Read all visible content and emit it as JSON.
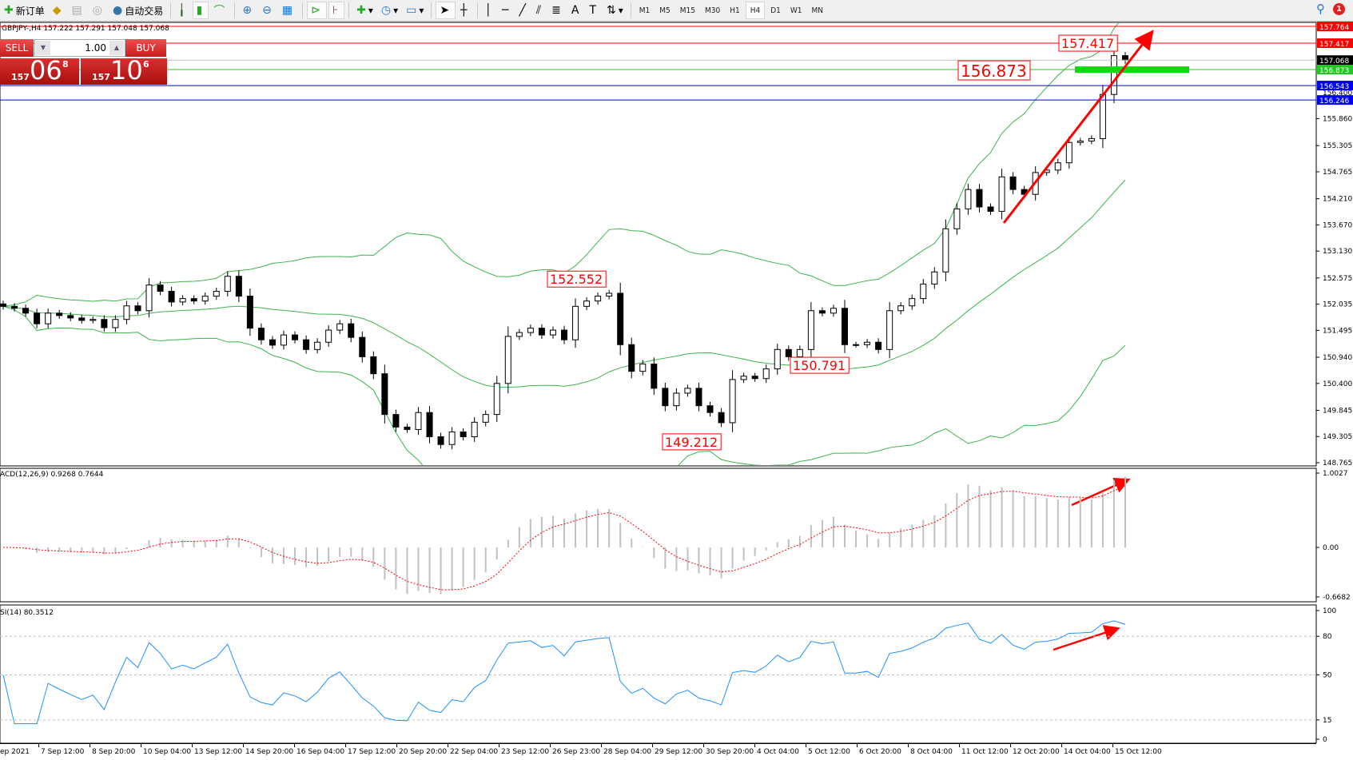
{
  "toolbar": {
    "new_order": "新订单",
    "auto_trading": "自动交易",
    "timeframes": [
      "M1",
      "M5",
      "M15",
      "M30",
      "H1",
      "H4",
      "D1",
      "W1",
      "MN"
    ],
    "active_timeframe": "H4",
    "notification_count": "1"
  },
  "chart_info": "GBPJPY-,H4  157.222 157.291 157.048 157.068",
  "one_click": {
    "sell_label": "SELL",
    "buy_label": "BUY",
    "lot": "1.00",
    "sell_price_prefix": "157",
    "sell_price_big": "06",
    "sell_price_sup": "8",
    "buy_price_prefix": "157",
    "buy_price_big": "10",
    "buy_price_sup": "6"
  },
  "colors": {
    "bollinger": "#3cb44b",
    "resistance": "#ff0000",
    "target": "#22c822",
    "support": "#0000ff",
    "rsi": "#1e90ff",
    "macd_hist": "#c0c0c0",
    "macd_signal": "#ff0000",
    "annotation": "#ff0000"
  },
  "chart_data": {
    "type": "candlestick",
    "symbol": "GBPJPY-",
    "timeframe": "H4",
    "closes": [
      151.99,
      151.95,
      151.85,
      151.63,
      151.85,
      151.8,
      151.75,
      151.7,
      151.72,
      151.55,
      151.72,
      152.0,
      151.9,
      152.43,
      152.3,
      152.08,
      152.15,
      152.1,
      152.2,
      152.3,
      152.61,
      152.2,
      151.54,
      151.3,
      151.19,
      151.4,
      151.3,
      151.1,
      151.25,
      151.5,
      151.63,
      151.35,
      150.95,
      150.6,
      149.76,
      149.5,
      149.45,
      149.8,
      149.3,
      149.14,
      149.4,
      149.3,
      149.6,
      149.76,
      150.4,
      151.37,
      151.45,
      151.54,
      151.4,
      151.5,
      151.3,
      151.99,
      152.1,
      152.2,
      152.26,
      151.2,
      150.65,
      150.8,
      150.3,
      149.94,
      150.2,
      150.3,
      149.94,
      149.8,
      149.59,
      150.48,
      150.55,
      150.5,
      150.7,
      151.1,
      150.95,
      151.1,
      151.9,
      151.85,
      151.95,
      151.2,
      151.2,
      151.25,
      151.1,
      151.9,
      152.0,
      152.15,
      152.45,
      152.7,
      153.59,
      154.0,
      154.4,
      154.04,
      153.95,
      154.66,
      154.4,
      154.3,
      154.75,
      154.8,
      154.95,
      155.37,
      155.4,
      155.45,
      156.36,
      157.16,
      157.068
    ],
    "price_axis": {
      "range": [
        148.765,
        157.764
      ],
      "ticks": [
        "155.860",
        "155.305",
        "154.765",
        "154.210",
        "153.670",
        "153.130",
        "152.575",
        "152.035",
        "151.495",
        "150.940",
        "150.400",
        "149.845",
        "149.305",
        "148.765"
      ]
    },
    "levels": [
      {
        "price": 157.764,
        "label": "157.764",
        "kind": "resistance"
      },
      {
        "price": 157.417,
        "label": "157.417",
        "kind": "resistance"
      },
      {
        "price": 157.068,
        "label": "157.068",
        "kind": "current"
      },
      {
        "price": 156.873,
        "label": "156.873",
        "kind": "target"
      },
      {
        "price": 156.543,
        "label": "156.543",
        "kind": "support"
      },
      {
        "price": 156.246,
        "label": "156.246",
        "kind": "support"
      }
    ],
    "extra_axis_label": "156.400",
    "annotations": [
      "157.417",
      "156.873",
      "152.552",
      "150.791",
      "149.212"
    ],
    "time_labels": [
      "ep 2021",
      "7 Sep 12:00",
      "8 Sep 20:00",
      "10 Sep 04:00",
      "13 Sep 12:00",
      "14 Sep 20:00",
      "16 Sep 04:00",
      "17 Sep 12:00",
      "20 Sep 20:00",
      "22 Sep 04:00",
      "23 Sep 12:00",
      "26 Sep 23:00",
      "28 Sep 04:00",
      "29 Sep 12:00",
      "30 Sep 20:00",
      "4 Oct 04:00",
      "5 Oct 12:00",
      "6 Oct 20:00",
      "8 Oct 04:00",
      "11 Oct 12:00",
      "12 Oct 20:00",
      "14 Oct 04:00",
      "15 Oct 12:00"
    ],
    "indicators": {
      "bollinger": {
        "period": 20,
        "deviation": 2
      },
      "macd": {
        "label": "ACD(12,26,9) 0.9268 0.7644",
        "axis": [
          "1.0027",
          "0.00",
          "-0.6682"
        ],
        "range": [
          -0.6682,
          1.0027
        ]
      },
      "rsi": {
        "label": "SI(14) 80.3512",
        "axis": [
          "100",
          "80",
          "50",
          "15",
          "0"
        ],
        "levels": [
          80,
          50,
          15
        ]
      }
    }
  }
}
